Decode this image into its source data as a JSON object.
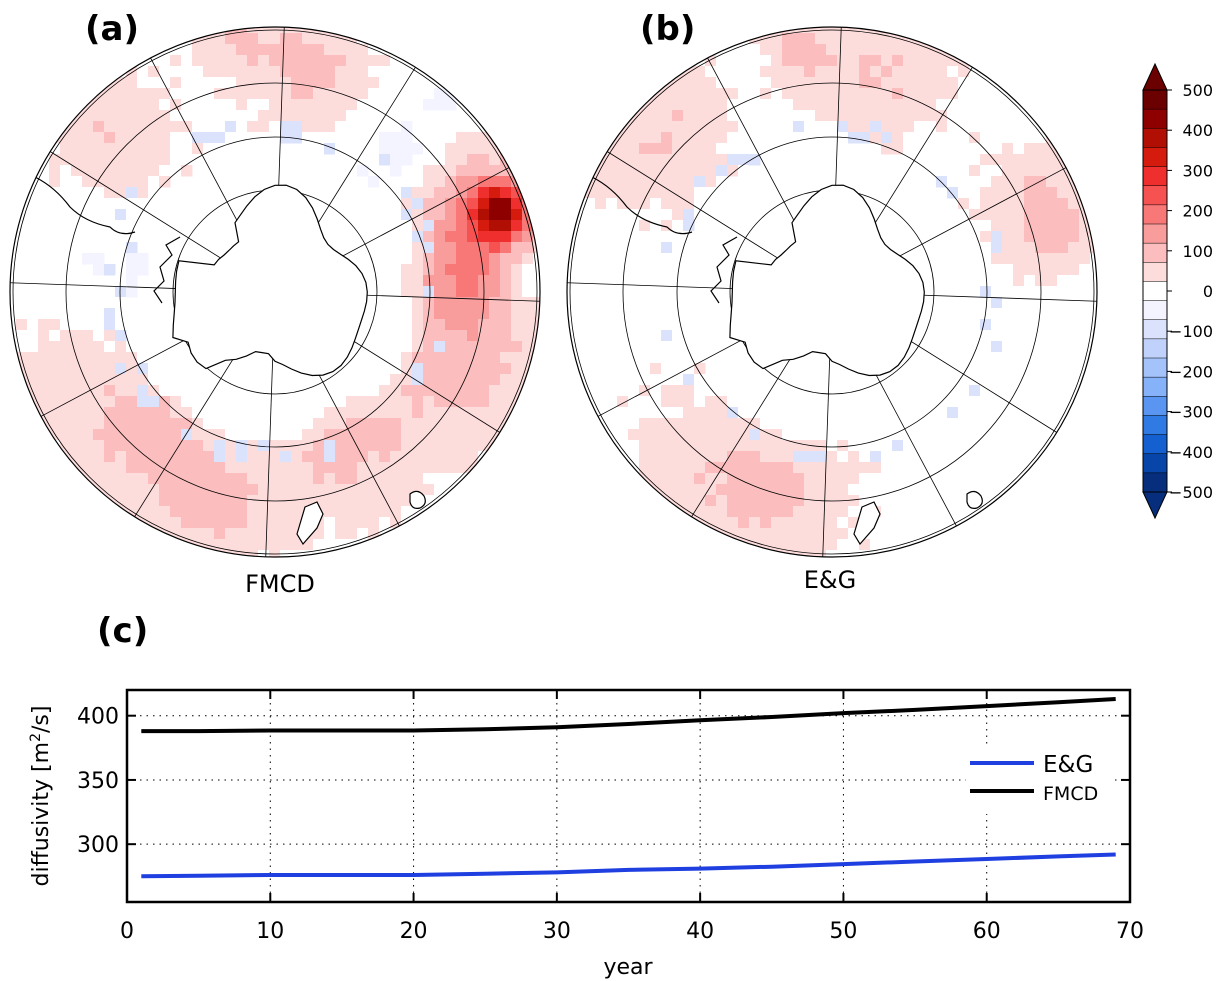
{
  "panels": {
    "a": {
      "letter": "(a)",
      "label": "FMCD"
    },
    "b": {
      "letter": "(b)",
      "label": "E&G"
    },
    "c": {
      "letter": "(c)"
    }
  },
  "colorbar": {
    "ticks": [
      "500",
      "400",
      "300",
      "200",
      "100",
      "0",
      "−100",
      "−200",
      "−300",
      "−400",
      "−500"
    ],
    "values": [
      500,
      400,
      300,
      200,
      100,
      0,
      -100,
      -200,
      -300,
      -400,
      -500
    ],
    "colors": [
      "#6b0000",
      "#8e0000",
      "#b20f04",
      "#d51b0e",
      "#ef2e2e",
      "#f75252",
      "#f87878",
      "#f89c9c",
      "#fbbdbd",
      "#fddcdc",
      "#ffffff",
      "#f3f4ff",
      "#dbe2fb",
      "#c0d2fb",
      "#a4c3fb",
      "#86b2fa",
      "#5a96f1",
      "#2f7be3",
      "#1560d0",
      "#0845a8",
      "#062e7c"
    ]
  },
  "chart_data": [
    {
      "type": "heatmap",
      "panel": "a",
      "xlabel": "FMCD",
      "colorscale": [
        -500,
        500
      ]
    },
    {
      "type": "heatmap",
      "panel": "b",
      "xlabel": "E&G",
      "colorscale": [
        -500,
        500
      ]
    },
    {
      "type": "line",
      "panel": "c",
      "xlabel": "year",
      "ylabel_main": "diffusivity [m",
      "ylabel_sup": "2",
      "ylabel_tail": "/s]",
      "xlim": [
        0,
        70
      ],
      "ylim": [
        255,
        420
      ],
      "xticks": [
        0,
        10,
        20,
        30,
        40,
        50,
        60,
        70
      ],
      "yticks": [
        300,
        350,
        400
      ],
      "grid": true,
      "legend": "right",
      "series": [
        {
          "name": "E&G",
          "color": "#1f3fe0",
          "x": [
            1,
            5,
            10,
            15,
            20,
            25,
            30,
            35,
            40,
            45,
            50,
            55,
            60,
            65,
            69
          ],
          "y": [
            275,
            275.5,
            276,
            276,
            276,
            277,
            278,
            280,
            281,
            282.5,
            284.5,
            286.5,
            288.5,
            290.5,
            292
          ]
        },
        {
          "name": "FMCD",
          "color": "#000000",
          "x": [
            1,
            5,
            10,
            15,
            20,
            25,
            30,
            35,
            40,
            45,
            50,
            55,
            60,
            65,
            69
          ],
          "y": [
            388,
            388,
            388.5,
            388.5,
            388.5,
            389.5,
            391,
            393.5,
            396.5,
            399,
            402,
            404.5,
            407.5,
            410.5,
            413
          ]
        }
      ]
    }
  ]
}
